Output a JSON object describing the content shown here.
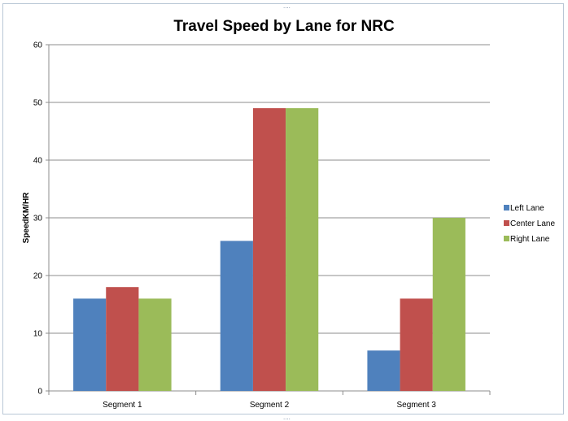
{
  "chart_data": {
    "type": "bar",
    "title": "Travel Speed by Lane for NRC",
    "ylabel": "SpeedKM/HR",
    "xlabel": "",
    "ylim": [
      0,
      60
    ],
    "yticks": [
      0,
      10,
      20,
      30,
      40,
      50,
      60
    ],
    "grid": true,
    "legend_position": "right",
    "categories": [
      "Segment 1",
      "Segment 2",
      "Segment 3"
    ],
    "series": [
      {
        "name": "Left Lane",
        "color": "#4f81bd",
        "values": [
          16,
          26,
          7
        ]
      },
      {
        "name": "Center Lane",
        "color": "#c0504d",
        "values": [
          18,
          49,
          16
        ]
      },
      {
        "name": "Right Lane",
        "color": "#9bbb59",
        "values": [
          16,
          49,
          30
        ]
      }
    ]
  },
  "frame": {
    "handle_glyph": "....",
    "border_color": "#b9c7d6"
  }
}
